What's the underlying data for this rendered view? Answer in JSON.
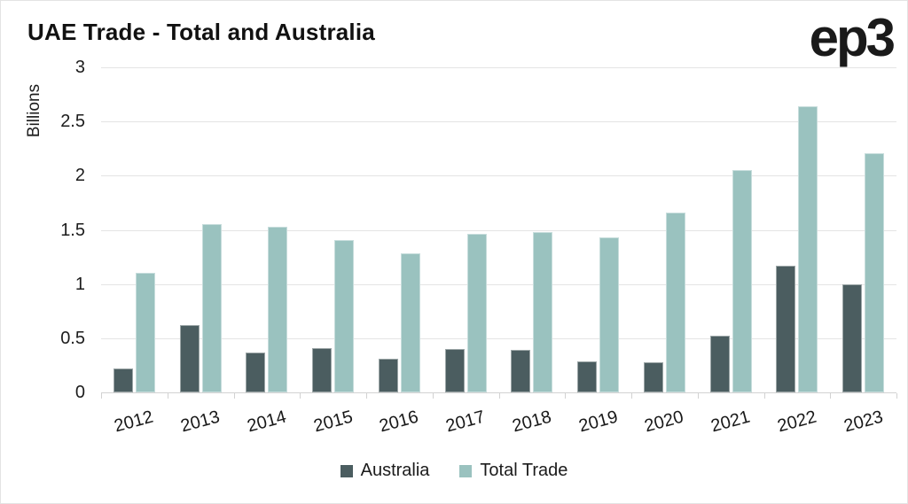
{
  "header": {
    "title": "UAE Trade - Total and Australia",
    "logo_text": "ep3"
  },
  "chart_data": {
    "type": "bar",
    "title": "UAE Trade - Total and Australia",
    "xlabel": "",
    "ylabel": "Billions",
    "ylim": [
      0,
      3
    ],
    "ytick_step": 0.5,
    "ytick_labels": [
      "0",
      "0.5",
      "1",
      "1.5",
      "2",
      "2.5",
      "3"
    ],
    "grid": true,
    "legend_position": "bottom",
    "categories": [
      "2012",
      "2013",
      "2014",
      "2015",
      "2016",
      "2017",
      "2018",
      "2019",
      "2020",
      "2021",
      "2022",
      "2023"
    ],
    "series": [
      {
        "name": "Australia",
        "color": "#4b5d60",
        "values": [
          0.22,
          0.62,
          0.37,
          0.41,
          0.31,
          0.4,
          0.39,
          0.29,
          0.28,
          0.52,
          1.17,
          1.0
        ]
      },
      {
        "name": "Total Trade",
        "color": "#9ac2bf",
        "values": [
          1.1,
          1.55,
          1.53,
          1.41,
          1.28,
          1.46,
          1.48,
          1.43,
          1.66,
          2.05,
          2.64,
          2.21
        ]
      }
    ]
  },
  "colors": {
    "grid": "#e4e4e4",
    "axis": "#d2d2d2",
    "background": "#ffffff",
    "text": "#1b1b1b"
  }
}
